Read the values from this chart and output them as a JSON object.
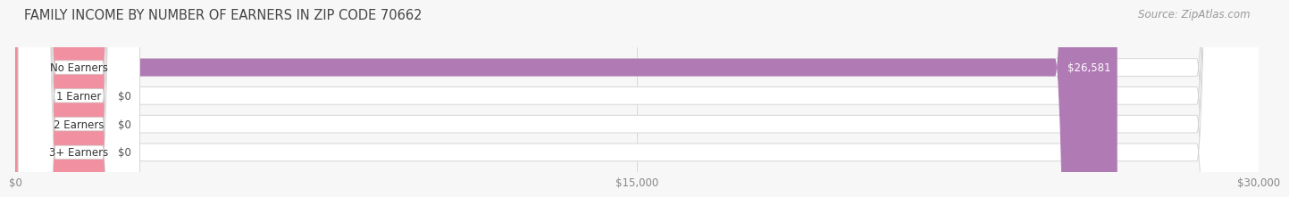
{
  "title": "FAMILY INCOME BY NUMBER OF EARNERS IN ZIP CODE 70662",
  "source": "Source: ZipAtlas.com",
  "categories": [
    "No Earners",
    "1 Earner",
    "2 Earners",
    "3+ Earners"
  ],
  "values": [
    26581,
    0,
    0,
    0
  ],
  "bar_colors": [
    "#b07ab5",
    "#5bbfbf",
    "#9898cc",
    "#f090a0"
  ],
  "value_labels": [
    "$26,581",
    "$0",
    "$0",
    "$0"
  ],
  "xlim": [
    0,
    30000
  ],
  "xticks": [
    0,
    15000,
    30000
  ],
  "xticklabels": [
    "$0",
    "$15,000",
    "$30,000"
  ],
  "background_color": "#f7f7f7",
  "bar_bg_color": "#e4e4e4",
  "bar_bg_border": "#d0d0d0",
  "title_fontsize": 10.5,
  "source_fontsize": 8.5,
  "tick_fontsize": 8.5,
  "label_fontsize": 8.5,
  "value_fontsize": 8.5,
  "bar_height": 0.62
}
